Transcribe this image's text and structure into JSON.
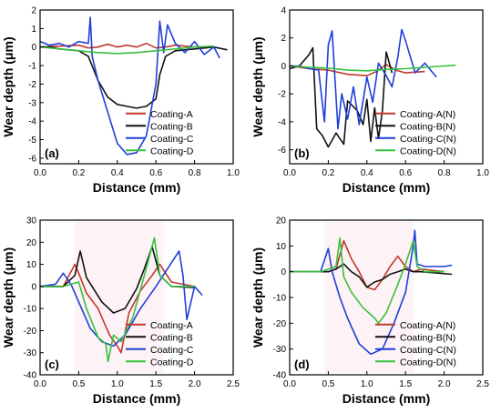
{
  "palette": {
    "red": "#c0392b",
    "black": "#111111",
    "blue": "#1f3fd8",
    "green": "#36c13c",
    "shade": "#f4b9c6"
  },
  "chart_data": [
    {
      "type": "line",
      "panel_label": "(a)",
      "xlabel": "Distance (mm)",
      "ylabel": "Wear depth (μm)",
      "xlim": [
        0.0,
        1.0
      ],
      "ylim": [
        -6.3,
        2.0
      ],
      "xticks": [
        "0.0",
        "0.2",
        "0.4",
        "0.6",
        "0.8",
        "1.0"
      ],
      "yticks": [
        "-6",
        "-5",
        "-4",
        "-3",
        "-2",
        "-1",
        "0",
        "1",
        "2"
      ],
      "legend": "bottom-right",
      "series": [
        {
          "name": "Coating-A",
          "color": "red",
          "x": [
            0.0,
            0.1,
            0.2,
            0.25,
            0.3,
            0.35,
            0.4,
            0.45,
            0.5,
            0.55,
            0.6,
            0.65,
            0.7,
            0.75,
            0.8,
            0.85,
            0.9
          ],
          "y": [
            0.0,
            0.05,
            0.1,
            -0.05,
            0.0,
            0.15,
            0.0,
            0.1,
            0.0,
            0.2,
            -0.05,
            0.0,
            0.1,
            0.05,
            0.0,
            0.0,
            0.05
          ]
        },
        {
          "name": "Coating-B",
          "color": "black",
          "x": [
            0.0,
            0.05,
            0.1,
            0.15,
            0.2,
            0.25,
            0.3,
            0.35,
            0.4,
            0.45,
            0.5,
            0.55,
            0.6,
            0.62,
            0.65,
            0.7,
            0.8,
            0.9,
            0.97
          ],
          "y": [
            0.0,
            0.0,
            -0.1,
            -0.15,
            -0.2,
            -0.5,
            -1.8,
            -2.7,
            -3.1,
            -3.2,
            -3.3,
            -3.2,
            -2.8,
            -1.5,
            -0.5,
            -0.2,
            -0.1,
            0.0,
            -0.15
          ]
        },
        {
          "name": "Coating-C",
          "color": "blue",
          "x": [
            0.0,
            0.05,
            0.1,
            0.15,
            0.2,
            0.25,
            0.26,
            0.27,
            0.3,
            0.35,
            0.4,
            0.45,
            0.5,
            0.55,
            0.6,
            0.62,
            0.64,
            0.66,
            0.7,
            0.75,
            0.8,
            0.85,
            0.9,
            0.93
          ],
          "y": [
            0.3,
            0.1,
            0.2,
            0.0,
            0.3,
            0.2,
            1.6,
            -0.5,
            -1.8,
            -3.5,
            -5.2,
            -5.8,
            -5.7,
            -4.8,
            -2.0,
            1.4,
            -0.3,
            1.2,
            0.2,
            -0.3,
            0.3,
            -0.4,
            0.0,
            -0.6
          ]
        },
        {
          "name": "Coating-D",
          "color": "green",
          "x": [
            0.0,
            0.1,
            0.2,
            0.3,
            0.4,
            0.5,
            0.6,
            0.7,
            0.8,
            0.9
          ],
          "y": [
            0.0,
            -0.1,
            -0.2,
            -0.3,
            -0.35,
            -0.3,
            -0.2,
            -0.1,
            0.0,
            0.05
          ]
        }
      ]
    },
    {
      "type": "line",
      "panel_label": "(b)",
      "xlabel": "Distance (mm)",
      "ylabel": "Wear depth (μm)",
      "xlim": [
        0.0,
        1.0
      ],
      "ylim": [
        -7.0,
        4.0
      ],
      "xticks": [
        "0.0",
        "0.2",
        "0.4",
        "0.6",
        "0.8",
        "1.0"
      ],
      "yticks": [
        "-6",
        "-4",
        "-2",
        "0",
        "2",
        "4"
      ],
      "legend": "bottom-right",
      "series": [
        {
          "name": "Coating-A(N)",
          "color": "red",
          "x": [
            0.0,
            0.1,
            0.2,
            0.3,
            0.4,
            0.45,
            0.5,
            0.55,
            0.6,
            0.7
          ],
          "y": [
            0.0,
            -0.2,
            -0.3,
            -0.6,
            -0.7,
            -0.4,
            0.1,
            -0.3,
            -0.5,
            -0.4
          ]
        },
        {
          "name": "Coating-B(N)",
          "color": "black",
          "x": [
            0.0,
            0.05,
            0.1,
            0.12,
            0.14,
            0.17,
            0.2,
            0.24,
            0.28,
            0.3,
            0.35,
            0.38,
            0.4,
            0.42,
            0.44,
            0.46,
            0.48,
            0.5,
            0.53
          ],
          "y": [
            -0.2,
            0.0,
            0.8,
            1.3,
            -4.5,
            -5.0,
            -5.8,
            -4.8,
            -5.6,
            -2.5,
            -3.2,
            -4.2,
            -2.4,
            -5.4,
            -3.0,
            -5.2,
            -3.2,
            1.0,
            -0.5
          ]
        },
        {
          "name": "Coating-C(N)",
          "color": "blue",
          "x": [
            0.0,
            0.05,
            0.1,
            0.15,
            0.18,
            0.2,
            0.22,
            0.25,
            0.27,
            0.3,
            0.33,
            0.36,
            0.4,
            0.43,
            0.46,
            0.5,
            0.53,
            0.56,
            0.58,
            0.6,
            0.65,
            0.7,
            0.76
          ],
          "y": [
            0.0,
            0.0,
            -0.2,
            -0.3,
            -4.0,
            1.5,
            2.5,
            -4.5,
            -2.0,
            -3.8,
            -1.5,
            -4.2,
            -0.8,
            -2.6,
            0.2,
            -0.7,
            -1.5,
            0.6,
            2.6,
            1.8,
            -0.5,
            0.2,
            -0.8
          ]
        },
        {
          "name": "Coating-D(N)",
          "color": "green",
          "x": [
            0.0,
            0.1,
            0.2,
            0.3,
            0.4,
            0.5,
            0.6,
            0.7,
            0.8,
            0.86
          ],
          "y": [
            0.0,
            -0.1,
            -0.15,
            -0.3,
            -0.35,
            -0.25,
            -0.2,
            -0.1,
            0.0,
            0.05
          ]
        }
      ]
    },
    {
      "type": "line",
      "panel_label": "(c)",
      "xlabel": "Distance (mm)",
      "ylabel": "Wear depth (μm)",
      "xlim": [
        0.0,
        2.5
      ],
      "ylim": [
        -40,
        30
      ],
      "xticks": [
        "0.0",
        "0.5",
        "1.0",
        "1.5",
        "2.0",
        "2.5"
      ],
      "yticks": [
        "-40",
        "-30",
        "-20",
        "-10",
        "0",
        "10",
        "20",
        "30"
      ],
      "legend": "bottom-right",
      "series": [
        {
          "name": "Coating-A",
          "color": "red",
          "x": [
            0.0,
            0.3,
            0.45,
            0.5,
            0.6,
            0.75,
            0.9,
            1.0,
            1.05,
            1.15,
            1.3,
            1.45,
            1.55,
            1.7,
            2.0
          ],
          "y": [
            0.0,
            0.0,
            10.0,
            6.0,
            -3.0,
            -10.0,
            -22.0,
            -27.0,
            -30.0,
            -12.0,
            -2.0,
            5.0,
            10.0,
            2.0,
            0.0
          ]
        },
        {
          "name": "Coating-B",
          "color": "black",
          "x": [
            0.0,
            0.3,
            0.45,
            0.52,
            0.6,
            0.8,
            0.95,
            1.1,
            1.25,
            1.35,
            1.45,
            1.55,
            1.7,
            2.0
          ],
          "y": [
            0.0,
            0.0,
            5.0,
            16.0,
            4.0,
            -7.0,
            -12.0,
            -10.0,
            -1.0,
            8.0,
            18.0,
            5.0,
            0.0,
            -0.5
          ]
        },
        {
          "name": "Coating-C",
          "color": "blue",
          "x": [
            0.0,
            0.2,
            0.3,
            0.4,
            0.5,
            0.65,
            0.8,
            0.95,
            1.1,
            1.3,
            1.5,
            1.65,
            1.8,
            1.85,
            1.9,
            2.0,
            2.1
          ],
          "y": [
            0.0,
            1.0,
            6.0,
            1.0,
            -7.0,
            -19.0,
            -25.0,
            -27.0,
            -22.0,
            -10.0,
            0.0,
            8.0,
            16.0,
            5.0,
            -15.0,
            0.0,
            -4.0
          ]
        },
        {
          "name": "Coating-D",
          "color": "green",
          "x": [
            0.0,
            0.3,
            0.4,
            0.5,
            0.6,
            0.75,
            0.85,
            0.88,
            0.95,
            1.05,
            1.2,
            1.35,
            1.48,
            1.55,
            1.7,
            2.0
          ],
          "y": [
            0.0,
            0.0,
            1.0,
            2.0,
            -10.0,
            -23.0,
            -26.0,
            -34.0,
            -22.0,
            -25.0,
            -14.0,
            5.0,
            22.0,
            5.0,
            0.0,
            0.0
          ]
        }
      ]
    },
    {
      "type": "line",
      "panel_label": "(d)",
      "xlabel": "Distance (mm)",
      "ylabel": "Wear depth (μm)",
      "xlim": [
        0.0,
        2.5
      ],
      "ylim": [
        -40,
        20
      ],
      "xticks": [
        "0.0",
        "0.5",
        "1.0",
        "1.5",
        "2.0",
        "2.5"
      ],
      "yticks": [
        "-40",
        "-30",
        "-20",
        "-10",
        "0",
        "10",
        "20"
      ],
      "legend": "bottom-right",
      "series": [
        {
          "name": "Coating-A(N)",
          "color": "red",
          "x": [
            0.0,
            0.5,
            0.6,
            0.7,
            0.8,
            0.9,
            1.0,
            1.1,
            1.2,
            1.3,
            1.4,
            1.5,
            1.6,
            1.7,
            2.0
          ],
          "y": [
            0.0,
            0.0,
            1.0,
            12.0,
            5.0,
            0.0,
            -6.0,
            -7.0,
            -3.0,
            2.0,
            6.0,
            2.0,
            0.0,
            1.0,
            0.0
          ]
        },
        {
          "name": "Coating-B(N)",
          "color": "black",
          "x": [
            0.0,
            0.5,
            0.6,
            0.7,
            0.8,
            0.9,
            1.0,
            1.1,
            1.2,
            1.3,
            1.4,
            1.5,
            1.6,
            1.7,
            2.1
          ],
          "y": [
            0.0,
            0.0,
            1.0,
            3.0,
            0.0,
            -2.0,
            -6.0,
            -4.0,
            -3.0,
            -1.0,
            0.0,
            1.0,
            0.0,
            0.0,
            -1.0
          ]
        },
        {
          "name": "Coating-C(N)",
          "color": "blue",
          "x": [
            0.0,
            0.4,
            0.5,
            0.55,
            0.65,
            0.75,
            0.9,
            1.05,
            1.2,
            1.35,
            1.5,
            1.6,
            1.62,
            1.65,
            1.75,
            2.0,
            2.1
          ],
          "y": [
            0.0,
            0.0,
            9.0,
            0.0,
            -10.0,
            -18.0,
            -28.0,
            -32.0,
            -30.0,
            -20.0,
            -8.0,
            10.0,
            16.0,
            3.0,
            2.0,
            2.0,
            2.5
          ]
        },
        {
          "name": "Coating-D(N)",
          "color": "green",
          "x": [
            0.0,
            0.4,
            0.6,
            0.65,
            0.7,
            0.8,
            0.95,
            1.1,
            1.15,
            1.25,
            1.4,
            1.5,
            1.6,
            1.65,
            1.75,
            2.0
          ],
          "y": [
            0.0,
            0.0,
            2.0,
            13.0,
            -2.0,
            -8.0,
            -14.0,
            -18.0,
            -20.0,
            -16.0,
            -5.0,
            3.0,
            12.0,
            2.0,
            0.0,
            0.0
          ]
        }
      ]
    }
  ]
}
